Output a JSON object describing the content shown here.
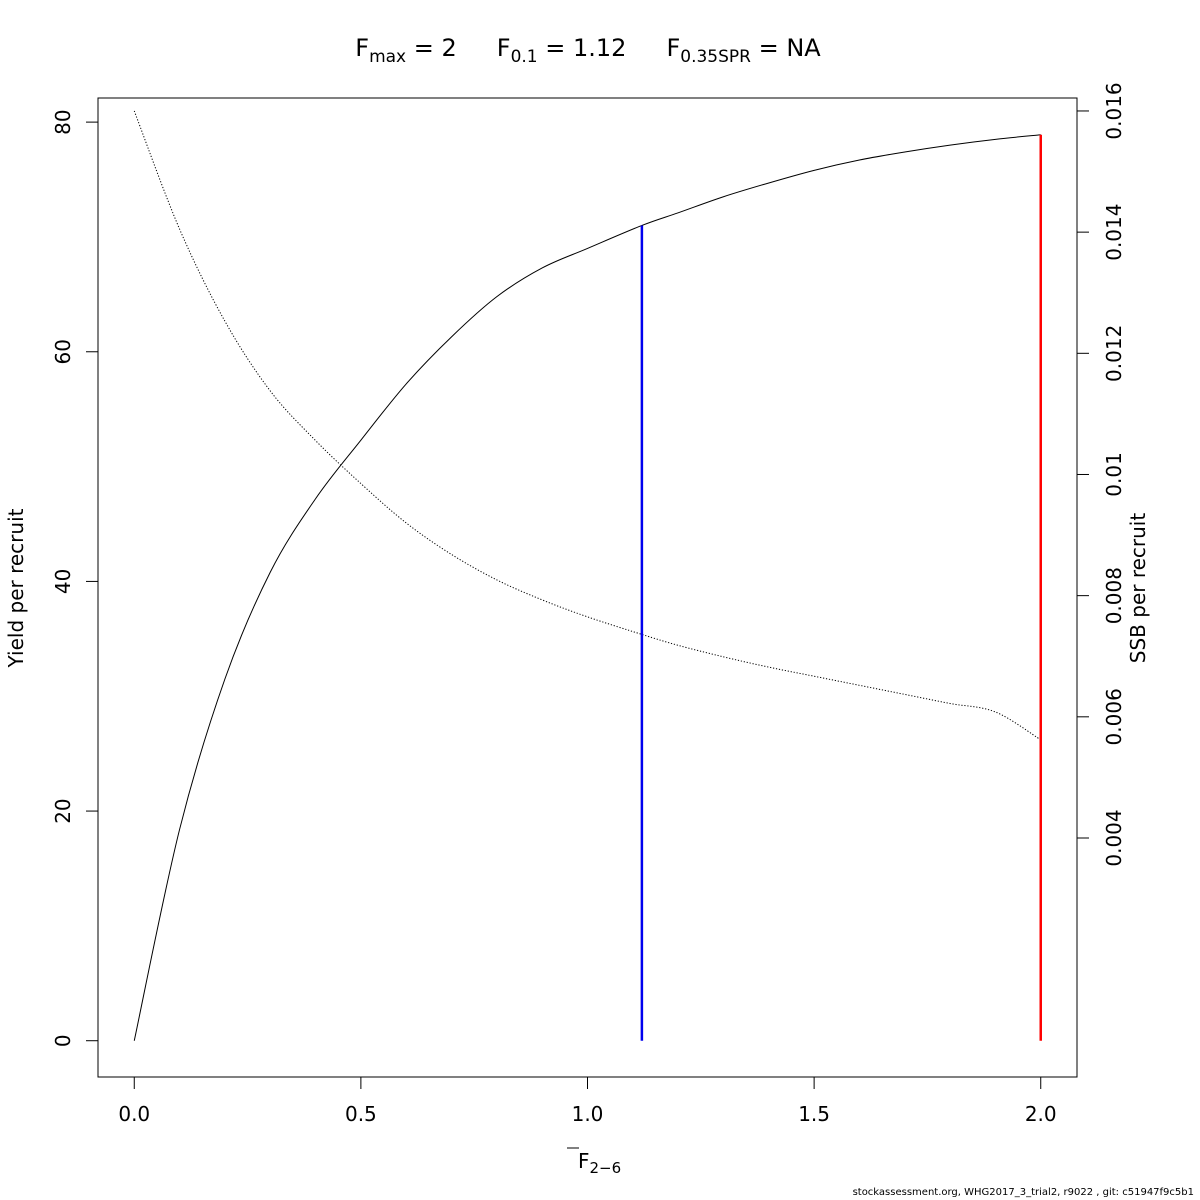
{
  "title": {
    "fmax_base": "F",
    "fmax_sub": "max",
    "fmax_val": " = 2",
    "f01_base": "F",
    "f01_sub": "0.1",
    "f01_val": " = 1.12",
    "fspr_base": "F",
    "fspr_sub": "0.35SPR",
    "fspr_val": " = NA"
  },
  "footer": "stockassessment.org, WHG2017_3_trial2, r9022 , git: c51947f9c5b1",
  "chart_data": {
    "type": "line",
    "xlabel": {
      "base": "F",
      "sub": "2−6"
    },
    "ylabel": "Yield per recruit",
    "y2label": "SSB per recruit",
    "xlim": [
      -0.08,
      2.08
    ],
    "ylim": [
      -3.16,
      82.1
    ],
    "y2lim": [
      5.5e-05,
      0.016214
    ],
    "x_ticks": [
      0.0,
      0.5,
      1.0,
      1.5,
      2.0
    ],
    "x_tick_labels": [
      "0.0",
      "0.5",
      "1.0",
      "1.5",
      "2.0"
    ],
    "y_ticks": [
      0,
      20,
      40,
      60,
      80
    ],
    "y_tick_labels": [
      "0",
      "20",
      "40",
      "60",
      "80"
    ],
    "y2_ticks": [
      0.004,
      0.006,
      0.008,
      0.01,
      0.012,
      0.014,
      0.016
    ],
    "y2_tick_labels": [
      "0.004",
      "0.006",
      "0.008",
      "0.01",
      "0.012",
      "0.014",
      "0.016"
    ],
    "series": [
      {
        "style": "solid",
        "axis": "left",
        "color": "#000000",
        "x": [
          0.0,
          0.1,
          0.2,
          0.3,
          0.4,
          0.5,
          0.6,
          0.7,
          0.8,
          0.9,
          1.0,
          1.12,
          1.2,
          1.3,
          1.4,
          1.5,
          1.6,
          1.7,
          1.8,
          1.9,
          2.0
        ],
        "y": [
          0.0,
          18.4,
          31.5,
          40.8,
          47.2,
          52.3,
          57.2,
          61.3,
          64.8,
          67.3,
          69.0,
          71.0,
          72.1,
          73.5,
          74.7,
          75.8,
          76.7,
          77.4,
          78.0,
          78.5,
          78.9
        ]
      },
      {
        "style": "dotted",
        "axis": "right",
        "color": "#000000",
        "x": [
          0.0,
          0.1,
          0.2,
          0.3,
          0.4,
          0.5,
          0.6,
          0.7,
          0.8,
          0.9,
          1.0,
          1.12,
          1.2,
          1.3,
          1.4,
          1.5,
          1.6,
          1.7,
          1.8,
          1.9,
          2.0
        ],
        "y": [
          0.016,
          0.01405,
          0.01253,
          0.01138,
          0.01056,
          0.00985,
          0.0092,
          0.00868,
          0.00826,
          0.00793,
          0.00765,
          0.00736,
          0.00718,
          0.00699,
          0.00682,
          0.00667,
          0.00652,
          0.00637,
          0.00622,
          0.00608,
          0.00562
        ]
      }
    ],
    "vlines": [
      {
        "x": 1.12,
        "y0": 0,
        "y1": 71.0,
        "color": "#0000ee"
      },
      {
        "x": 2.0,
        "y0": 0,
        "y1": 78.9,
        "color": "#ff0000"
      }
    ]
  }
}
